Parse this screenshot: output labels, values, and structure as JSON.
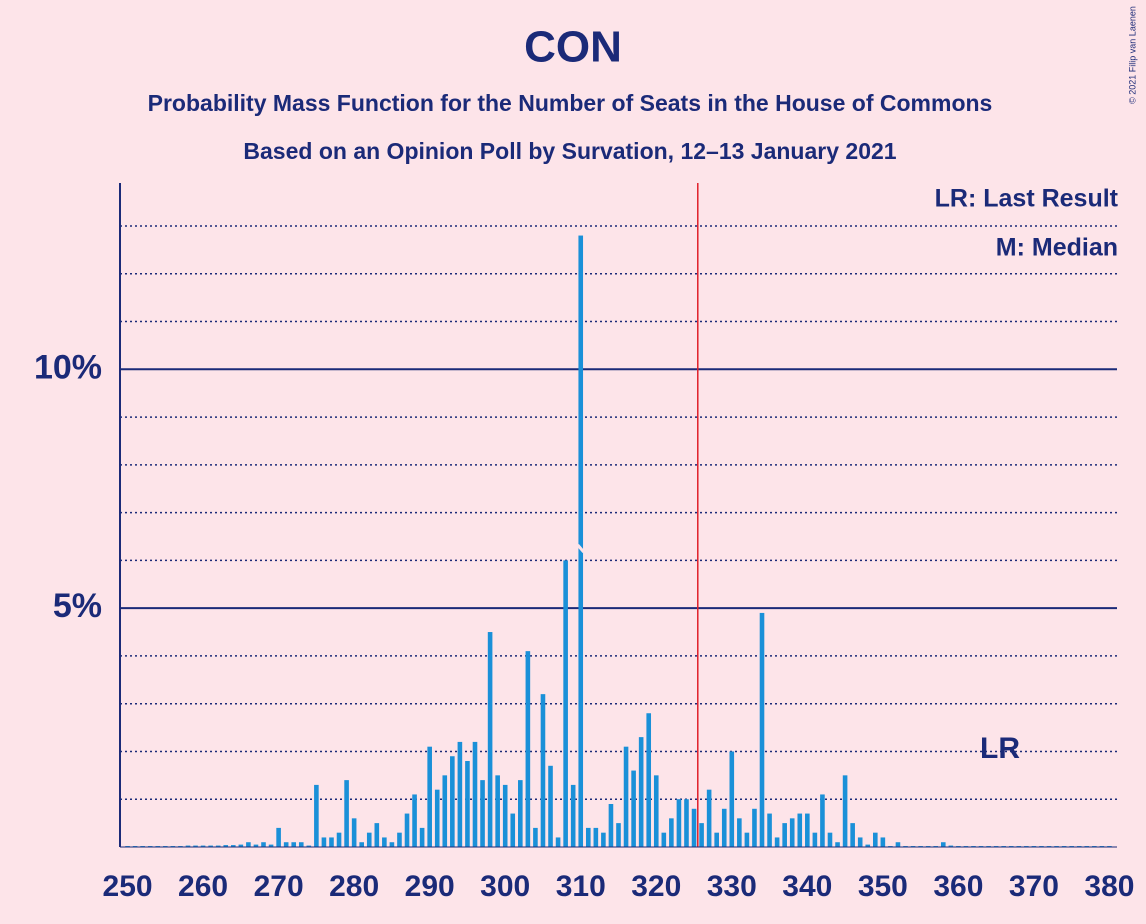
{
  "chart_data": {
    "type": "bar",
    "title": "CON",
    "subtitle": "Probability Mass Function for the Number of Seats in the House of Commons",
    "subtitle2": "Based on an Opinion Poll by Survation, 12–13 January 2021",
    "copyright": "© 2021 Filip van Laenen",
    "legend_lr": "LR: Last Result",
    "legend_m": "M: Median",
    "lr_label": "LR",
    "last_result": 326,
    "median": 310,
    "color": "#1a90d8",
    "lr_color": "#e0202a",
    "x_start": 250,
    "xlim": [
      249,
      381
    ],
    "xticks": [
      250,
      260,
      270,
      280,
      290,
      300,
      310,
      320,
      330,
      340,
      350,
      360,
      370,
      380
    ],
    "ylim": [
      0,
      13.9
    ],
    "yticks": [
      {
        "value": 5,
        "label": "5%"
      },
      {
        "value": 10,
        "label": "10%"
      }
    ],
    "minor_gridlines": [
      1,
      2,
      3,
      4,
      6,
      7,
      8,
      9,
      11,
      12,
      13
    ],
    "values": [
      0.02,
      0.02,
      0.02,
      0.02,
      0.02,
      0.02,
      0.02,
      0.02,
      0.03,
      0.03,
      0.03,
      0.03,
      0.03,
      0.04,
      0.04,
      0.05,
      0.1,
      0.05,
      0.1,
      0.05,
      0.4,
      0.1,
      0.1,
      0.1,
      0.03,
      1.3,
      0.2,
      0.2,
      0.3,
      1.4,
      0.6,
      0.1,
      0.3,
      0.5,
      0.2,
      0.1,
      0.3,
      0.7,
      1.1,
      0.4,
      2.1,
      1.2,
      1.5,
      1.9,
      2.2,
      1.8,
      2.2,
      1.4,
      4.5,
      1.5,
      1.3,
      0.7,
      1.4,
      4.1,
      0.4,
      3.2,
      1.7,
      0.2,
      6.0,
      1.3,
      12.8,
      0.4,
      0.4,
      0.3,
      0.9,
      0.5,
      2.1,
      1.6,
      2.3,
      2.8,
      1.5,
      0.3,
      0.6,
      1.0,
      1.0,
      0.8,
      0.5,
      1.2,
      0.3,
      0.8,
      2.0,
      0.6,
      0.3,
      0.8,
      4.9,
      0.7,
      0.2,
      0.5,
      0.6,
      0.7,
      0.7,
      0.3,
      1.1,
      0.3,
      0.1,
      1.5,
      0.5,
      0.2,
      0.05,
      0.3,
      0.2,
      0.02,
      0.1,
      0.02,
      0.02,
      0.02,
      0.02,
      0.02,
      0.1,
      0.03,
      0.02,
      0.02,
      0.02,
      0.02,
      0.02,
      0.02,
      0.02,
      0.02,
      0.02,
      0.02,
      0.02,
      0.02,
      0.02,
      0.02,
      0.02,
      0.02,
      0.02,
      0.02,
      0.02,
      0.02,
      0.02
    ]
  }
}
